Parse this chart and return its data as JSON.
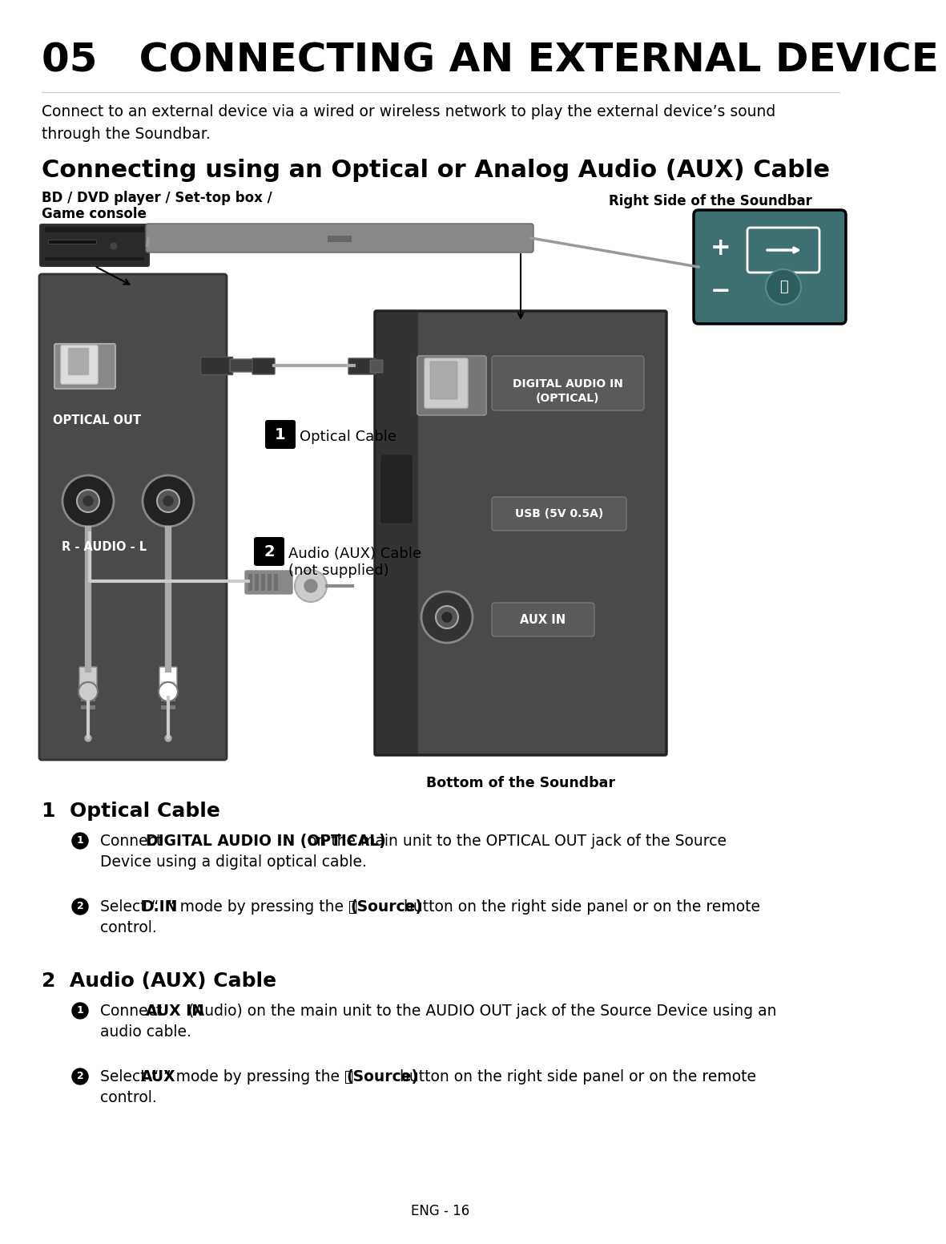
{
  "bg_color": "#ffffff",
  "page_title": "05   CONNECTING AN EXTERNAL DEVICE",
  "intro_line1": "Connect to an external device via a wired or wireless network to play the external device’s sound",
  "intro_line2": "through the Soundbar.",
  "section_title": "Connecting using an Optical or Analog Audio (AUX) Cable",
  "label_bd_line1": "BD / DVD player / Set-top box /",
  "label_bd_line2": "Game console",
  "label_right_side": "Right Side of the Soundbar",
  "label_bottom": "Bottom of the Soundbar",
  "label_optical_out": "OPTICAL OUT",
  "label_optical_cable": "Optical Cable",
  "label_digital_audio_line1": "DIGITAL AUDIO IN",
  "label_digital_audio_line2": "(OPTICAL)",
  "label_usb": "USB (5V 0.5A)",
  "label_aux_in": "AUX IN",
  "label_r_audio_l": "R - AUDIO - L",
  "label_audio_aux_line1": "Audio (AUX) Cable",
  "label_audio_aux_line2": "(not supplied)",
  "footer": "ENG - 16"
}
